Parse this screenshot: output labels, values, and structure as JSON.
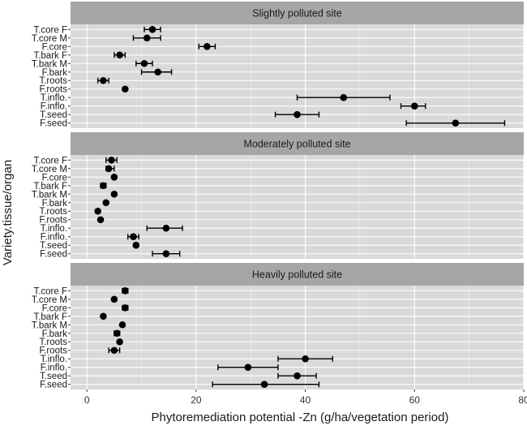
{
  "chart_data": {
    "type": "scatter",
    "subtype": "point-with-error-bars, faceted",
    "xlabel": "Phytoremediation potential -Zn (g/ha/vegetation period)",
    "ylabel": "Variety.tissue/organ",
    "xlim": [
      -3,
      80
    ],
    "xticks": [
      0,
      20,
      40,
      60,
      80
    ],
    "grid": true,
    "categories": [
      "T.core F",
      "T.core M",
      "F.core",
      "T.bark F",
      "T.bark M",
      "F.bark",
      "T.roots",
      "F.roots",
      "T.inflo.",
      "F.inflo.",
      "T.seed",
      "F.seed"
    ],
    "panels": [
      {
        "title": "Slightly polluted site",
        "values": [
          12,
          11,
          22,
          6,
          10.5,
          13,
          3,
          7,
          47,
          60,
          38.5,
          67.5
        ],
        "lower": [
          10.5,
          8.5,
          20.5,
          5,
          9,
          10,
          2,
          7,
          38.5,
          57.5,
          34.5,
          58.5
        ],
        "upper": [
          13.5,
          13.5,
          23.5,
          7,
          12,
          15.5,
          4,
          7,
          55.5,
          62,
          42.5,
          76.5
        ]
      },
      {
        "title": "Moderately polluted site",
        "values": [
          4.5,
          4,
          5,
          3,
          5,
          3.5,
          2,
          2.5,
          14.5,
          8.5,
          9,
          14.5
        ],
        "lower": [
          3.5,
          3.5,
          5,
          2.5,
          5,
          3.5,
          2,
          2.5,
          11,
          7.5,
          9,
          12
        ],
        "upper": [
          5.5,
          5,
          5,
          3.5,
          5,
          3.5,
          2,
          2.5,
          17.5,
          9.5,
          9,
          17
        ]
      },
      {
        "title": "Heavily polluted site",
        "values": [
          7,
          5,
          7,
          3,
          6.5,
          5.5,
          6,
          5,
          40,
          29.5,
          38.5,
          32.5
        ],
        "lower": [
          6.5,
          5,
          6.5,
          3,
          6.5,
          5,
          6,
          4,
          35,
          24,
          35,
          23
        ],
        "upper": [
          7.5,
          5,
          7.5,
          3,
          6.5,
          6,
          6,
          6,
          45,
          35,
          42,
          42.5
        ]
      }
    ]
  }
}
